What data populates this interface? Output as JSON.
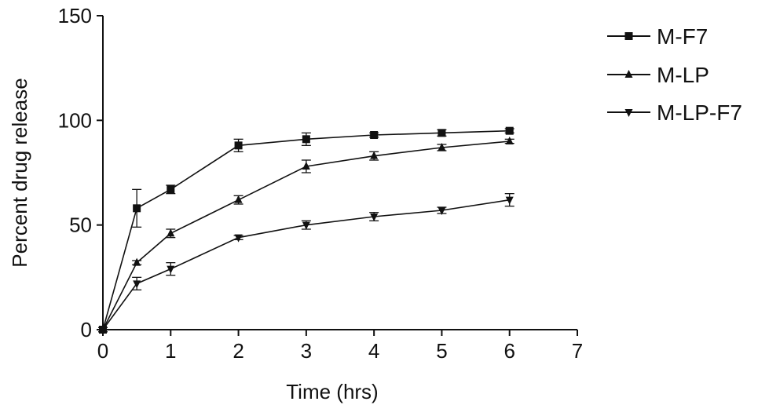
{
  "chart_data": {
    "type": "line",
    "title": "",
    "xlabel": "Time (hrs)",
    "ylabel": "Percent drug release",
    "xlim": [
      0,
      7
    ],
    "ylim": [
      0,
      150
    ],
    "x_ticks": [
      "0",
      "1",
      "2",
      "3",
      "4",
      "5",
      "6",
      "7"
    ],
    "y_ticks": [
      "0",
      "50",
      "100",
      "150"
    ],
    "grid": false,
    "legend_position": "top-right",
    "x": [
      0,
      0.5,
      1,
      2,
      3,
      4,
      5,
      6
    ],
    "series": [
      {
        "name": "M-F7",
        "marker": "square",
        "values": [
          0,
          58,
          67,
          88,
          91,
          93,
          94,
          95
        ],
        "errors": [
          1,
          9,
          2,
          3,
          3,
          1,
          1.5,
          1
        ]
      },
      {
        "name": "M-LP",
        "marker": "triangle-up",
        "values": [
          0,
          32,
          46,
          62,
          78,
          83,
          87,
          90
        ],
        "errors": [
          1,
          1,
          2,
          2,
          3,
          2,
          1.5,
          1
        ]
      },
      {
        "name": "M-LP-F7",
        "marker": "triangle-down",
        "values": [
          0,
          22,
          29,
          44,
          50,
          54,
          57,
          62
        ],
        "errors": [
          1,
          3,
          3,
          1,
          2,
          2,
          1.5,
          3
        ]
      }
    ]
  }
}
